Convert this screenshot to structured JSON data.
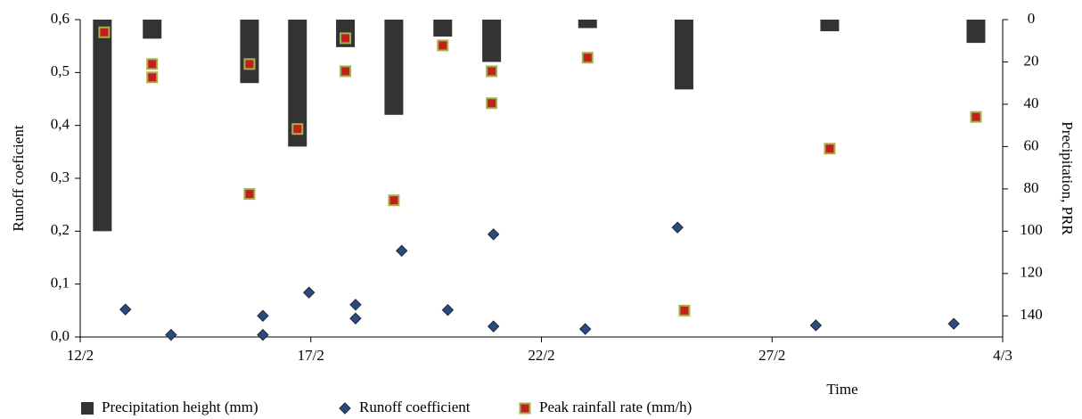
{
  "chart_data": {
    "type": "combo",
    "xlabel": "Time",
    "ylabel": "Runoff coeficient",
    "y2label": "Precipitation, PRR",
    "xlim": [
      0,
      20
    ],
    "xticks": [
      {
        "value": 0,
        "label": "12/2"
      },
      {
        "value": 5,
        "label": "17/2"
      },
      {
        "value": 10,
        "label": "22/2"
      },
      {
        "value": 15,
        "label": "27/2"
      },
      {
        "value": 20,
        "label": "4/3"
      }
    ],
    "ylim": [
      0,
      0.6
    ],
    "yticks": [
      {
        "value": 0,
        "label": "0,0"
      },
      {
        "value": 0.1,
        "label": "0,1"
      },
      {
        "value": 0.2,
        "label": "0,2"
      },
      {
        "value": 0.3,
        "label": "0,3"
      },
      {
        "value": 0.4,
        "label": "0,4"
      },
      {
        "value": 0.5,
        "label": "0,5"
      },
      {
        "value": 0.6,
        "label": "0,6"
      }
    ],
    "y2lim": [
      0,
      150
    ],
    "y2_inverted": true,
    "y2ticks": [
      0,
      20,
      40,
      60,
      80,
      100,
      120,
      140
    ],
    "legend": "bottom",
    "series": [
      {
        "name": "Precipitation height (mm)",
        "type": "bar",
        "axis": "y2",
        "color": "#333333",
        "x": [
          0.48,
          1.56,
          3.67,
          4.71,
          5.75,
          6.8,
          7.86,
          8.92,
          11.0,
          13.09,
          16.25,
          19.42
        ],
        "values": [
          100,
          9,
          30,
          60,
          13,
          45,
          8,
          20,
          4,
          33,
          5.5,
          11
        ]
      },
      {
        "name": "Runoff coefficient",
        "type": "scatter",
        "marker": "diamond",
        "color": "#2e4a7a",
        "x": [
          0.98,
          1.97,
          3.96,
          3.96,
          4.96,
          5.97,
          5.97,
          6.97,
          7.97,
          8.96,
          8.96,
          10.95,
          12.95,
          15.95,
          18.94
        ],
        "values": [
          0.052,
          0.004,
          0.04,
          0.004,
          0.084,
          0.061,
          0.035,
          0.163,
          0.051,
          0.194,
          0.02,
          0.015,
          0.207,
          0.022,
          0.025
        ]
      },
      {
        "name": "Peak rainfall rate (mm/h)",
        "type": "scatter",
        "marker": "square",
        "axis": "y2",
        "color": "#c0201e",
        "x": [
          0.52,
          1.56,
          1.56,
          3.67,
          3.67,
          4.71,
          5.75,
          5.75,
          6.8,
          7.86,
          8.92,
          8.92,
          11.0,
          13.1,
          16.25,
          19.42
        ],
        "values": [
          6,
          21,
          27.3,
          21,
          82.4,
          51.7,
          8.8,
          24.4,
          85.4,
          12.2,
          24.4,
          39.5,
          18,
          137.5,
          61,
          46
        ]
      }
    ]
  }
}
